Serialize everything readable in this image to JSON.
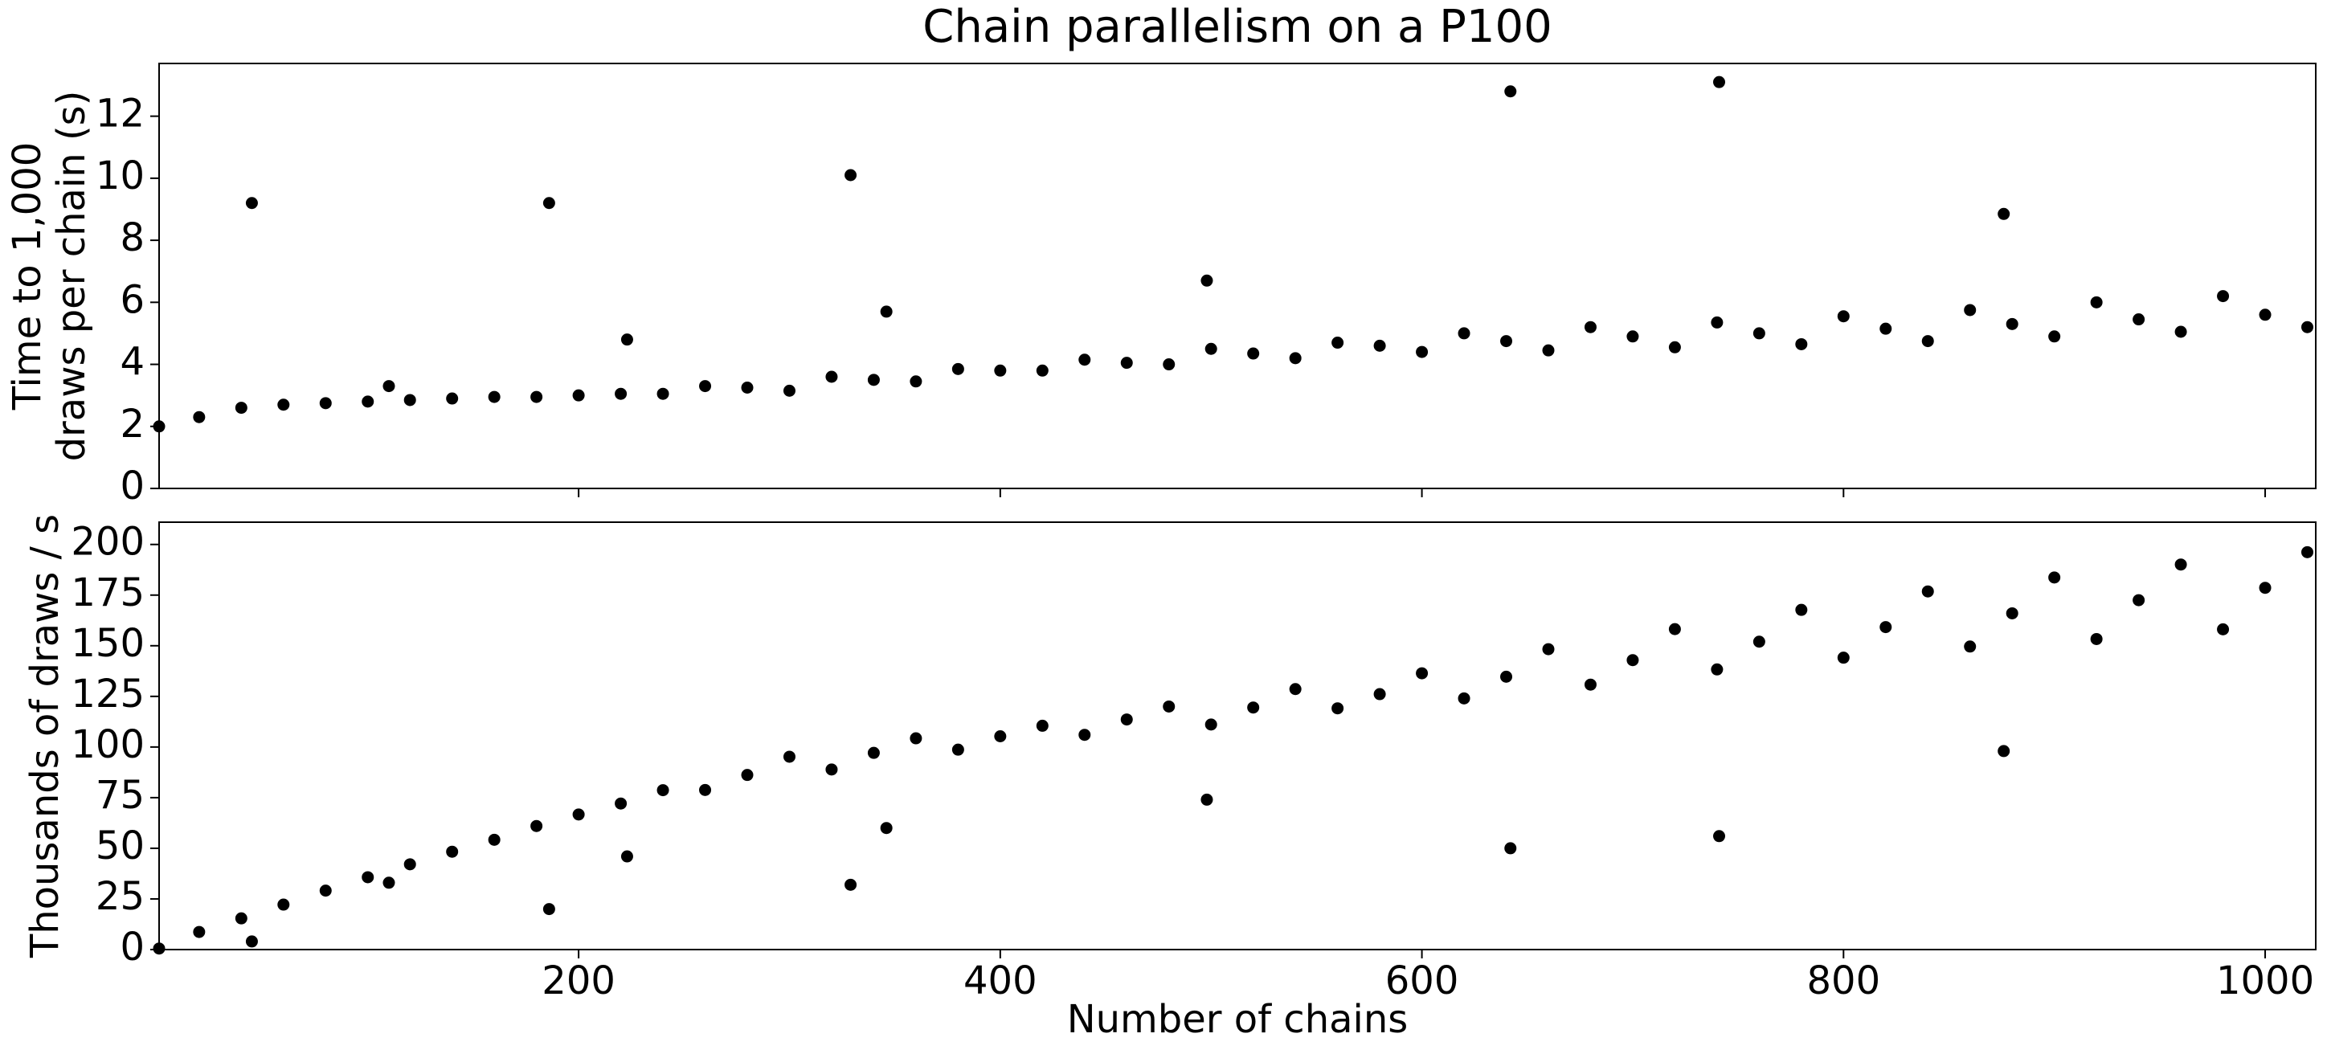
{
  "chart_data": [
    {
      "type": "scatter",
      "title": "Chain parallelism on a P100",
      "ylabel": [
        "Time to 1,000",
        "draws per chain (s)"
      ],
      "x": [
        1,
        20,
        40,
        60,
        80,
        100,
        120,
        140,
        160,
        180,
        200,
        220,
        240,
        260,
        280,
        300,
        320,
        340,
        360,
        380,
        400,
        420,
        440,
        460,
        480,
        500,
        520,
        540,
        560,
        580,
        600,
        620,
        640,
        660,
        680,
        700,
        720,
        740,
        760,
        780,
        800,
        820,
        840,
        860,
        880,
        900,
        920,
        940,
        960,
        980,
        1000,
        1020,
        45,
        110,
        186,
        223,
        329,
        346,
        498,
        642,
        741,
        876
      ],
      "values": [
        2.0,
        2.3,
        2.6,
        2.7,
        2.75,
        2.8,
        2.85,
        2.9,
        2.95,
        2.95,
        3.0,
        3.05,
        3.05,
        3.3,
        3.25,
        3.15,
        3.6,
        3.5,
        3.45,
        3.85,
        3.8,
        3.8,
        4.15,
        4.05,
        4.0,
        4.5,
        4.35,
        4.2,
        4.7,
        4.6,
        4.4,
        5.0,
        4.75,
        4.45,
        5.2,
        4.9,
        4.55,
        5.35,
        5.0,
        4.65,
        5.55,
        5.15,
        4.75,
        5.75,
        5.3,
        4.9,
        6.0,
        5.45,
        5.05,
        6.2,
        5.6,
        5.2,
        9.2,
        3.3,
        9.2,
        4.8,
        10.1,
        5.7,
        6.7,
        12.8,
        13.1,
        8.85
      ],
      "color": "#000000",
      "xlim": [
        1,
        1024
      ],
      "ylim": [
        0,
        13.7
      ],
      "xticks": [
        200,
        400,
        600,
        800,
        1000
      ],
      "yticks": [
        0,
        2,
        4,
        6,
        8,
        10,
        12
      ],
      "show_xtick_labels": false
    },
    {
      "type": "scatter",
      "xlabel": "Number of chains",
      "ylabel": [
        "Thousands of draws / s"
      ],
      "x": [
        1,
        20,
        40,
        60,
        80,
        100,
        120,
        140,
        160,
        180,
        200,
        220,
        240,
        260,
        280,
        300,
        320,
        340,
        360,
        380,
        400,
        420,
        440,
        460,
        480,
        500,
        520,
        540,
        560,
        580,
        600,
        620,
        640,
        660,
        680,
        700,
        720,
        740,
        760,
        780,
        800,
        820,
        840,
        860,
        880,
        900,
        920,
        940,
        960,
        980,
        1000,
        1020,
        45,
        110,
        186,
        223,
        329,
        346,
        498,
        642,
        741,
        876
      ],
      "values": [
        0.5,
        8.7,
        15.4,
        22.2,
        29.1,
        35.7,
        42.1,
        48.3,
        54.2,
        61.0,
        66.7,
        72.1,
        78.7,
        78.8,
        86.2,
        95.2,
        88.9,
        97.1,
        104.3,
        98.7,
        105.3,
        110.5,
        106.0,
        113.6,
        120,
        111.1,
        119.5,
        128.6,
        119.1,
        126.1,
        136.4,
        124,
        134.7,
        148.3,
        130.8,
        142.9,
        158.2,
        138.3,
        152,
        167.7,
        144.1,
        159.2,
        176.8,
        149.6,
        166.0,
        183.7,
        153.3,
        172.5,
        190.1,
        158.1,
        178.6,
        196.2,
        4,
        33,
        20,
        46,
        32,
        60,
        74,
        50,
        56,
        98
      ],
      "color": "#000000",
      "xlim": [
        1,
        1024
      ],
      "ylim": [
        0,
        211
      ],
      "xticks": [
        200,
        400,
        600,
        800,
        1000
      ],
      "yticks": [
        0,
        25,
        50,
        75,
        100,
        125,
        150,
        175,
        200
      ],
      "show_xtick_labels": true
    }
  ]
}
